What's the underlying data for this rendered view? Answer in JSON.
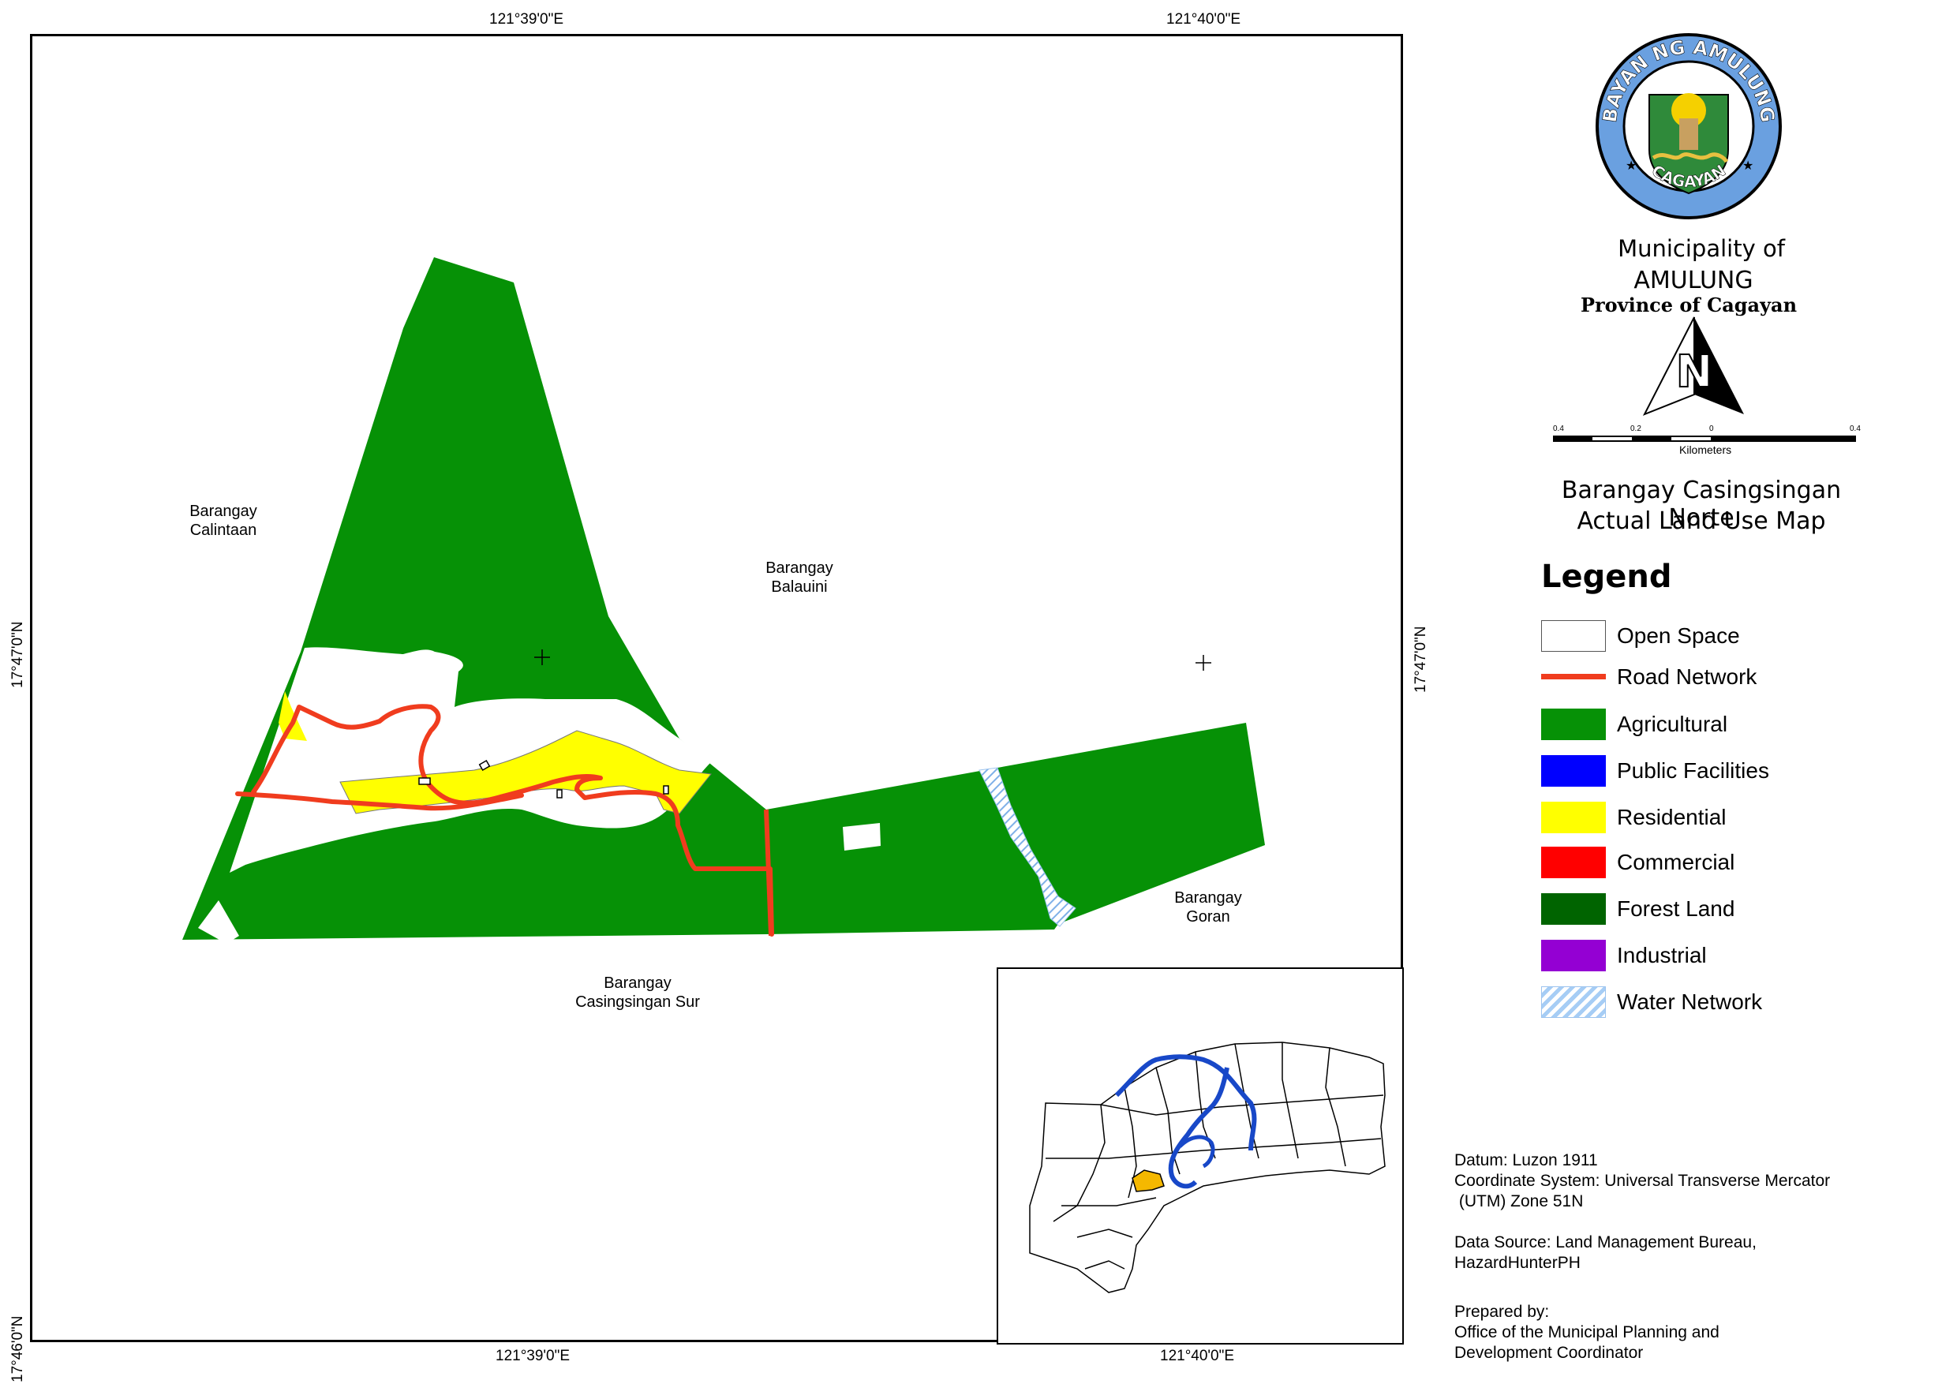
{
  "coordinates": {
    "top_left_lon": "121°39'0\"E",
    "top_right_lon": "121°40'0\"E",
    "bottom_left_lon": "121°39'0\"E",
    "bottom_right_lon": "121°40'0\"E",
    "left_mid_lat": "17°47'0\"N",
    "left_bottom_lat": "17°46'0\"N",
    "right_mid_lat": "17°47'0\"N"
  },
  "barangay_labels": {
    "calintaan": "Barangay\nCalintaan",
    "balauini": "Barangay\nBalauini",
    "goran": "Barangay\nGoran",
    "casingsingan_sur": "Barangay\nCasingsingan Sur"
  },
  "seal": {
    "top_text": "BAYAN NG AMULUNG",
    "bottom_text": "CAGAYAN"
  },
  "municipality": {
    "line1": "Municipality of",
    "line2": "AMULUNG",
    "line3": "Province of Cagayan"
  },
  "north_arrow": {
    "letter": "N"
  },
  "scale_bar": {
    "ticks": [
      "0.4",
      "0.2",
      "0",
      "0.4"
    ],
    "unit": "Kilometers"
  },
  "map_title": {
    "line1": "Barangay Casingsingan Norte",
    "line2": "Actual Land Use Map"
  },
  "legend": {
    "title": "Legend",
    "items": [
      {
        "label": "Open Space",
        "color": "#ffffff",
        "kind": "box"
      },
      {
        "label": "Road Network",
        "color": "#f03c1e",
        "kind": "line"
      },
      {
        "label": "Agricultural",
        "color": "#069106",
        "kind": "box"
      },
      {
        "label": "Public Facilities",
        "color": "#0000ff",
        "kind": "box"
      },
      {
        "label": "Residential",
        "color": "#ffff00",
        "kind": "box"
      },
      {
        "label": "Commercial",
        "color": "#ff0000",
        "kind": "box"
      },
      {
        "label": "Forest Land",
        "color": "#006400",
        "kind": "box"
      },
      {
        "label": "Industrial",
        "color": "#9400d3",
        "kind": "box"
      },
      {
        "label": "Water Network",
        "color": "#a6cdf5",
        "kind": "hatch"
      }
    ]
  },
  "info": {
    "datum": "Datum: Luzon 1911",
    "coord_system": "Coordinate System: Universal Transverse Mercator\n (UTM) Zone 51N",
    "source": "Data Source: Land Management Bureau,\nHazardHunterPH",
    "prepared": "Prepared by:\nOffice of the Municipal Planning and\nDevelopment Coordinator"
  },
  "colors": {
    "agricultural": "#069106",
    "road": "#f03c1e",
    "residential": "#ffff00",
    "water_river": "#1848c8",
    "inset_highlight": "#f5b800"
  }
}
